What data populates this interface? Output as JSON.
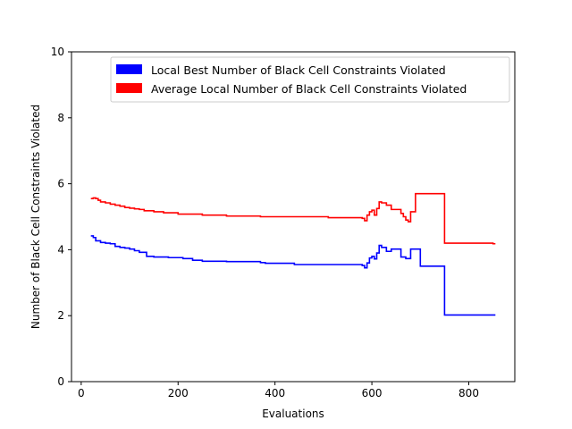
{
  "chart_data": {
    "type": "line",
    "step": true,
    "xlabel": "Evaluations",
    "ylabel": "Number of Black Cell Constraints Violated",
    "xlim": [
      -20,
      895
    ],
    "ylim": [
      0,
      10
    ],
    "xticks": [
      0,
      200,
      400,
      600,
      800
    ],
    "yticks": [
      0,
      2,
      4,
      6,
      8,
      10
    ],
    "grid": false,
    "legend_position": "top-right",
    "series": [
      {
        "name": "Local Best Number of Black Cell Constraints Violated",
        "color": "#0000ff",
        "x": [
          20,
          25,
          30,
          40,
          50,
          60,
          70,
          80,
          90,
          100,
          110,
          120,
          135,
          150,
          180,
          210,
          230,
          250,
          300,
          350,
          370,
          380,
          440,
          500,
          580,
          585,
          590,
          595,
          600,
          605,
          610,
          615,
          620,
          625,
          630,
          640,
          650,
          660,
          670,
          680,
          700,
          750,
          855
        ],
        "y": [
          4.42,
          4.37,
          4.27,
          4.22,
          4.2,
          4.18,
          4.1,
          4.07,
          4.05,
          4.02,
          3.97,
          3.92,
          3.8,
          3.78,
          3.76,
          3.73,
          3.68,
          3.65,
          3.64,
          3.64,
          3.61,
          3.59,
          3.55,
          3.55,
          3.52,
          3.45,
          3.6,
          3.75,
          3.8,
          3.72,
          3.9,
          4.13,
          4.07,
          4.07,
          3.95,
          4.02,
          4.02,
          3.78,
          3.73,
          4.02,
          3.5,
          2.02,
          2.02
        ]
      },
      {
        "name": "Average Local Number of Black Cell Constraints Violated",
        "color": "#ff0000",
        "x": [
          20,
          25,
          30,
          35,
          40,
          50,
          60,
          70,
          80,
          90,
          100,
          110,
          120,
          130,
          150,
          170,
          200,
          250,
          300,
          370,
          510,
          580,
          585,
          590,
          595,
          600,
          605,
          610,
          615,
          620,
          630,
          640,
          660,
          665,
          670,
          675,
          680,
          690,
          750,
          850,
          855
        ],
        "y": [
          5.55,
          5.57,
          5.55,
          5.5,
          5.45,
          5.42,
          5.38,
          5.35,
          5.32,
          5.28,
          5.26,
          5.24,
          5.22,
          5.18,
          5.15,
          5.12,
          5.08,
          5.05,
          5.02,
          5.0,
          4.97,
          4.95,
          4.88,
          5.05,
          5.15,
          5.2,
          5.05,
          5.25,
          5.45,
          5.42,
          5.35,
          5.22,
          5.1,
          5.0,
          4.9,
          4.85,
          5.15,
          5.7,
          4.2,
          4.18,
          4.18
        ]
      }
    ]
  }
}
